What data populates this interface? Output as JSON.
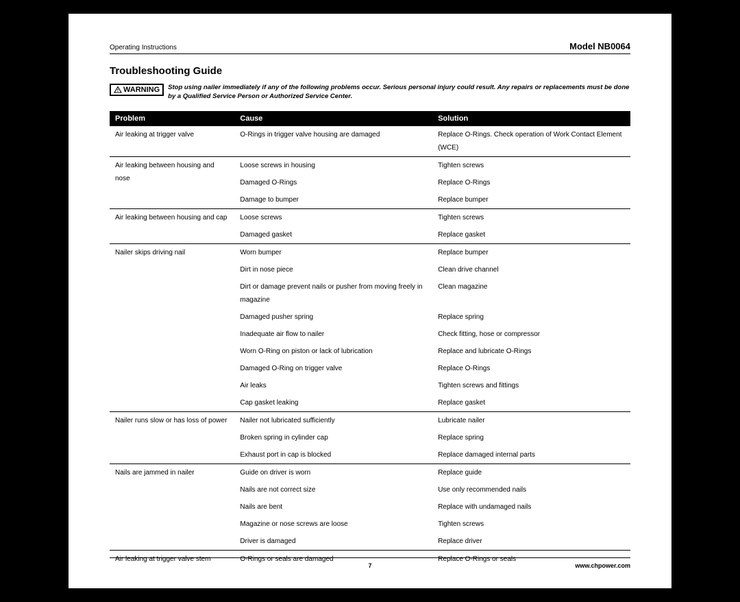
{
  "header": {
    "left": "Operating Instructions",
    "right": "Model NB0064"
  },
  "title": "Troubleshooting Guide",
  "warning": {
    "badge": "WARNING",
    "text": "Stop using nailer immediately if any of the following problems occur. Serious personal injury could result. Any repairs or replacements must be done by a Qualified Service Person or Authorized Service Center."
  },
  "columns": {
    "problem": "Problem",
    "cause": "Cause",
    "solution": "Solution"
  },
  "groups": [
    {
      "problem": "Air leaking at trigger valve",
      "rows": [
        {
          "cause": "O-Rings in trigger valve housing are damaged",
          "solution": "Replace O-Rings. Check operation of Work Contact Element (WCE)"
        }
      ]
    },
    {
      "problem": "Air leaking between housing and nose",
      "rows": [
        {
          "cause": "Loose screws in housing",
          "solution": "Tighten screws"
        },
        {
          "cause": "Damaged O-Rings",
          "solution": "Replace O-Rings"
        },
        {
          "cause": "Damage to bumper",
          "solution": "Replace bumper"
        }
      ]
    },
    {
      "problem": "Air leaking between housing and cap",
      "rows": [
        {
          "cause": "Loose screws",
          "solution": "Tighten screws"
        },
        {
          "cause": "Damaged gasket",
          "solution": "Replace gasket"
        }
      ]
    },
    {
      "problem": "Nailer skips driving nail",
      "rows": [
        {
          "cause": "Worn bumper",
          "solution": "Replace bumper"
        },
        {
          "cause": "Dirt in nose piece",
          "solution": "Clean drive channel"
        },
        {
          "cause": "Dirt or damage prevent nails or pusher from moving freely in magazine",
          "solution": "Clean magazine",
          "indent2": true
        },
        {
          "cause": "Damaged pusher spring",
          "solution": "Replace spring"
        },
        {
          "cause": "Inadequate air flow to nailer",
          "solution": "Check fitting, hose or compressor"
        },
        {
          "cause": "Worn O-Ring on piston or lack of lubrication",
          "solution": "Replace and lubricate O-Rings"
        },
        {
          "cause": "Damaged O-Ring on trigger valve",
          "solution": "Replace O-Rings"
        },
        {
          "cause": "Air leaks",
          "solution": "Tighten screws and fittings"
        },
        {
          "cause": "Cap gasket leaking",
          "solution": "Replace gasket"
        }
      ]
    },
    {
      "problem": "Nailer runs slow or has loss of power",
      "rows": [
        {
          "cause": "Nailer not lubricated sufficiently",
          "solution": "Lubricate nailer"
        },
        {
          "cause": "Broken spring in cylinder cap",
          "solution": "Replace spring"
        },
        {
          "cause": "Exhaust port in cap is blocked",
          "solution": "Replace damaged internal parts"
        }
      ]
    },
    {
      "problem": "Nails are jammed in nailer",
      "rows": [
        {
          "cause": "Guide on driver is worn",
          "solution": "Replace guide"
        },
        {
          "cause": "Nails are not correct size",
          "solution": "Use only recommended nails"
        },
        {
          "cause": "Nails are bent",
          "solution": "Replace with undamaged nails"
        },
        {
          "cause": "Magazine or nose screws are loose",
          "solution": "Tighten screws"
        },
        {
          "cause": "Driver is damaged",
          "solution": "Replace driver"
        }
      ]
    },
    {
      "problem": "Air leaking at trigger valve stem",
      "rows": [
        {
          "cause": "O-Rings or seals are damaged",
          "solution": "Replace O-Rings or seals"
        }
      ]
    }
  ],
  "footer": {
    "page": "7",
    "url": "www.chpower.com"
  }
}
